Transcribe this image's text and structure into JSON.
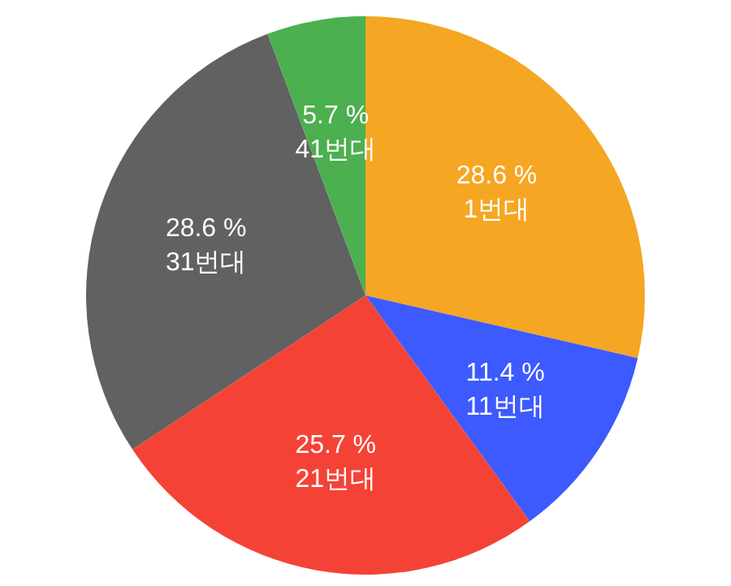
{
  "chart_data": {
    "type": "pie",
    "categories": [
      "1번대",
      "11번대",
      "21번대",
      "31번대",
      "41번대"
    ],
    "values": [
      28.6,
      11.4,
      25.7,
      28.6,
      5.7
    ],
    "value_labels": [
      "28.6 %",
      "11.4 %",
      "25.7 %",
      "28.6 %",
      "5.7 %"
    ],
    "colors": [
      "#f5a623",
      "#3d5afe",
      "#f44336",
      "#616161",
      "#4caf50"
    ]
  }
}
